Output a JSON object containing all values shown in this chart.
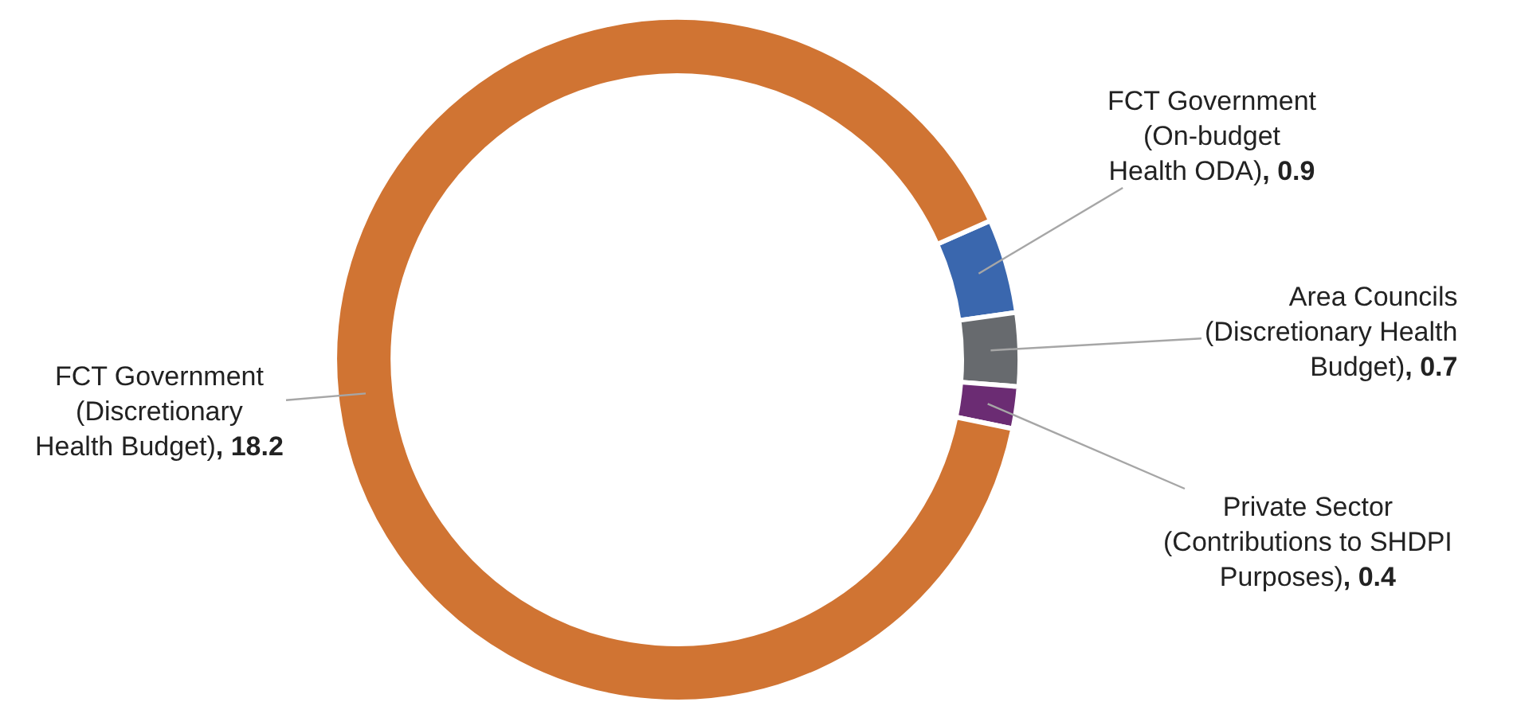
{
  "chart_data": {
    "type": "donut",
    "categories": [
      "FCT Government (On-budget Health ODA)",
      "Area Councils (Discretionary Health Budget)",
      "Private Sector (Contributions to SHDPI Purposes)",
      "FCT Government (Discretionary Health Budget)"
    ],
    "values": [
      0.9,
      0.7,
      0.4,
      18.2
    ],
    "colors": [
      "#3a67ae",
      "#676a6e",
      "#6b2c73",
      "#d07433"
    ],
    "value_labels": [
      ", 0.9",
      ", 0.7",
      ", 0.4",
      ", 18.2"
    ],
    "legend": false
  }
}
